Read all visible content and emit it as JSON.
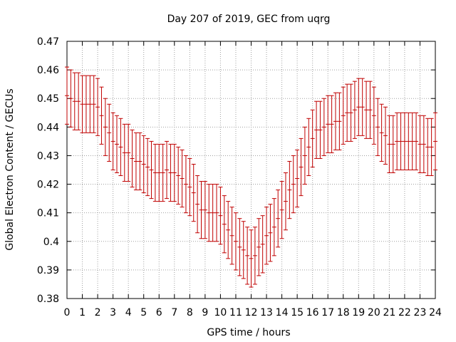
{
  "chart_data": {
    "type": "line",
    "title": "Day 207 of 2019, GEC from uqrg",
    "xlabel": "GPS time / hours",
    "ylabel": "Global Electron Content / GECUs",
    "xlim": [
      0,
      24
    ],
    "ylim": [
      0.38,
      0.47
    ],
    "grid": true,
    "xticks": [
      0,
      1,
      2,
      3,
      4,
      5,
      6,
      7,
      8,
      9,
      10,
      11,
      12,
      13,
      14,
      15,
      16,
      17,
      18,
      19,
      20,
      21,
      22,
      23,
      24
    ],
    "xtick_labels": [
      "0",
      "1",
      "2",
      "3",
      "4",
      "5",
      "6",
      "7",
      "8",
      "9",
      "10",
      "11",
      "12",
      "13",
      "14",
      "15",
      "16",
      "17",
      "18",
      "19",
      "20",
      "21",
      "22",
      "23",
      "24"
    ],
    "yticks": [
      0.38,
      0.39,
      0.4,
      0.41,
      0.42,
      0.43,
      0.44,
      0.45,
      0.46,
      0.47
    ],
    "ytick_labels": [
      "0.38",
      "0.39",
      "0.4",
      "0.41",
      "0.42",
      "0.43",
      "0.44",
      "0.45",
      "0.46",
      "0.47"
    ],
    "series": [
      {
        "name": "GEC",
        "color": "#c00000",
        "error": 0.01,
        "x": [
          0,
          0.25,
          0.5,
          0.75,
          1,
          1.25,
          1.5,
          1.75,
          2,
          2.25,
          2.5,
          2.75,
          3,
          3.25,
          3.5,
          3.75,
          4,
          4.25,
          4.5,
          4.75,
          5,
          5.25,
          5.5,
          5.75,
          6,
          6.25,
          6.5,
          6.75,
          7,
          7.25,
          7.5,
          7.75,
          8,
          8.25,
          8.5,
          8.75,
          9,
          9.25,
          9.5,
          9.75,
          10,
          10.25,
          10.5,
          10.75,
          11,
          11.25,
          11.5,
          11.75,
          12,
          12.25,
          12.5,
          12.75,
          13,
          13.25,
          13.5,
          13.75,
          14,
          14.25,
          14.5,
          14.75,
          15,
          15.25,
          15.5,
          15.75,
          16,
          16.25,
          16.5,
          16.75,
          17,
          17.25,
          17.5,
          17.75,
          18,
          18.25,
          18.5,
          18.75,
          19,
          19.25,
          19.5,
          19.75,
          20,
          20.25,
          20.5,
          20.75,
          21,
          21.25,
          21.5,
          21.75,
          22,
          22.25,
          22.5,
          22.75,
          23,
          23.25,
          23.5,
          23.75,
          24
        ],
        "values": [
          0.451,
          0.45,
          0.449,
          0.449,
          0.448,
          0.448,
          0.448,
          0.448,
          0.447,
          0.444,
          0.44,
          0.438,
          0.435,
          0.434,
          0.433,
          0.431,
          0.431,
          0.429,
          0.428,
          0.428,
          0.427,
          0.426,
          0.425,
          0.424,
          0.424,
          0.424,
          0.425,
          0.424,
          0.424,
          0.423,
          0.422,
          0.42,
          0.419,
          0.417,
          0.413,
          0.411,
          0.411,
          0.41,
          0.41,
          0.41,
          0.409,
          0.406,
          0.404,
          0.402,
          0.4,
          0.398,
          0.397,
          0.395,
          0.394,
          0.395,
          0.398,
          0.399,
          0.402,
          0.403,
          0.405,
          0.408,
          0.411,
          0.414,
          0.418,
          0.42,
          0.422,
          0.426,
          0.43,
          0.433,
          0.436,
          0.439,
          0.439,
          0.44,
          0.441,
          0.441,
          0.442,
          0.442,
          0.444,
          0.445,
          0.445,
          0.446,
          0.447,
          0.447,
          0.446,
          0.446,
          0.444,
          0.44,
          0.438,
          0.437,
          0.434,
          0.434,
          0.435,
          0.435,
          0.435,
          0.435,
          0.435,
          0.435,
          0.434,
          0.434,
          0.433,
          0.433,
          0.435
        ]
      }
    ]
  }
}
